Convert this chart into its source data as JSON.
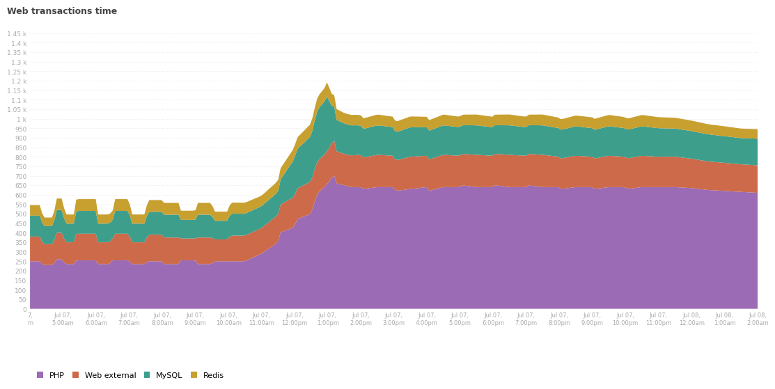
{
  "title": "Web transactions time",
  "colors": {
    "PHP": "#9b6bb5",
    "Web external": "#cd6a4a",
    "MySQL": "#3d9e8c",
    "Redis": "#c8a030"
  },
  "background_color": "#ffffff",
  "legend": [
    "PHP",
    "Web external",
    "MySQL",
    "Redis"
  ],
  "x_labels": [
    "7,\nm",
    "Jul 07,\n5:00am",
    "Jul 07,\n6:00am",
    "Jul 07,\n7:00am",
    "Jul 07,\n8:00am",
    "Jul 07,\n9:00am",
    "Jul 07,\n10:00am",
    "Jul 07,\n11:00am",
    "Jul 07,\n12:00pm",
    "Jul 07,\n1:00pm",
    "Jul 07,\n2:00pm",
    "Jul 07,\n3:00pm",
    "Jul 07,\n4:00pm",
    "Jul 07,\n5:00pm",
    "Jul 07,\n6:00pm",
    "Jul 07,\n7:00pm",
    "Jul 07,\n8:00pm",
    "Jul 07,\n9:00pm",
    "Jul 07,\n10:00pm",
    "Jul 07,\n11:00pm",
    "Jul 08,\n12:00am",
    "Jul 08,\n1:00am",
    "Jul 08,\n2:00am"
  ],
  "php_data": [
    [
      0,
      250
    ],
    [
      0.3,
      250
    ],
    [
      0.4,
      230
    ],
    [
      0.7,
      230
    ],
    [
      0.8,
      260
    ],
    [
      1.0,
      260
    ],
    [
      1.05,
      235
    ],
    [
      1.35,
      235
    ],
    [
      1.4,
      255
    ],
    [
      2.0,
      255
    ],
    [
      2.05,
      235
    ],
    [
      2.4,
      235
    ],
    [
      2.5,
      255
    ],
    [
      3.0,
      255
    ],
    [
      3.05,
      235
    ],
    [
      3.5,
      235
    ],
    [
      3.55,
      250
    ],
    [
      4.0,
      250
    ],
    [
      4.05,
      235
    ],
    [
      4.5,
      235
    ],
    [
      4.55,
      255
    ],
    [
      5.0,
      255
    ],
    [
      5.05,
      235
    ],
    [
      5.5,
      235
    ],
    [
      5.55,
      250
    ],
    [
      6.0,
      250
    ],
    [
      6.5,
      250
    ],
    [
      7.0,
      290
    ],
    [
      7.5,
      350
    ],
    [
      7.55,
      400
    ],
    [
      8.0,
      430
    ],
    [
      8.05,
      470
    ],
    [
      8.5,
      500
    ],
    [
      8.6,
      560
    ],
    [
      8.7,
      610
    ],
    [
      8.9,
      640
    ],
    [
      9.0,
      660
    ],
    [
      9.1,
      680
    ],
    [
      9.15,
      700
    ],
    [
      9.2,
      700
    ],
    [
      9.25,
      660
    ],
    [
      9.5,
      650
    ],
    [
      9.7,
      640
    ],
    [
      10.0,
      640
    ],
    [
      10.05,
      630
    ],
    [
      10.5,
      640
    ],
    [
      11.0,
      640
    ],
    [
      11.05,
      620
    ],
    [
      11.5,
      630
    ],
    [
      12.0,
      640
    ],
    [
      12.05,
      620
    ],
    [
      12.5,
      640
    ],
    [
      13.0,
      640
    ],
    [
      13.05,
      650
    ],
    [
      13.5,
      640
    ],
    [
      14.0,
      640
    ],
    [
      14.05,
      650
    ],
    [
      14.5,
      640
    ],
    [
      15.0,
      640
    ],
    [
      15.05,
      650
    ],
    [
      15.5,
      640
    ],
    [
      16.0,
      640
    ],
    [
      16.05,
      630
    ],
    [
      16.5,
      640
    ],
    [
      17.0,
      640
    ],
    [
      17.05,
      630
    ],
    [
      17.5,
      640
    ],
    [
      18.0,
      640
    ],
    [
      18.05,
      630
    ],
    [
      18.5,
      640
    ],
    [
      19.0,
      640
    ],
    [
      19.5,
      640
    ],
    [
      20.0,
      635
    ],
    [
      20.5,
      625
    ],
    [
      21.0,
      620
    ],
    [
      21.5,
      615
    ],
    [
      22.0,
      610
    ]
  ],
  "web_data": [
    [
      0,
      130
    ],
    [
      0.3,
      130
    ],
    [
      0.4,
      110
    ],
    [
      0.7,
      110
    ],
    [
      0.8,
      140
    ],
    [
      1.0,
      140
    ],
    [
      1.05,
      115
    ],
    [
      1.35,
      115
    ],
    [
      1.4,
      140
    ],
    [
      2.0,
      140
    ],
    [
      2.05,
      115
    ],
    [
      2.5,
      115
    ],
    [
      2.55,
      140
    ],
    [
      3.0,
      140
    ],
    [
      3.05,
      115
    ],
    [
      3.5,
      115
    ],
    [
      3.55,
      140
    ],
    [
      4.5,
      140
    ],
    [
      4.55,
      115
    ],
    [
      5.0,
      115
    ],
    [
      5.05,
      140
    ],
    [
      5.5,
      140
    ],
    [
      5.55,
      115
    ],
    [
      6.0,
      115
    ],
    [
      6.05,
      135
    ],
    [
      6.5,
      135
    ],
    [
      7.0,
      135
    ],
    [
      7.5,
      145
    ],
    [
      8.0,
      160
    ],
    [
      8.5,
      170
    ],
    [
      8.9,
      170
    ],
    [
      9.0,
      175
    ],
    [
      9.1,
      180
    ],
    [
      9.15,
      185
    ],
    [
      9.2,
      185
    ],
    [
      9.25,
      170
    ],
    [
      9.5,
      165
    ],
    [
      10.0,
      170
    ],
    [
      10.05,
      165
    ],
    [
      10.5,
      170
    ],
    [
      11.0,
      165
    ],
    [
      11.05,
      160
    ],
    [
      11.5,
      170
    ],
    [
      12.0,
      165
    ],
    [
      12.5,
      170
    ],
    [
      13.0,
      165
    ],
    [
      13.5,
      170
    ],
    [
      14.0,
      165
    ],
    [
      14.5,
      170
    ],
    [
      15.0,
      165
    ],
    [
      15.5,
      170
    ],
    [
      16.0,
      160
    ],
    [
      16.5,
      165
    ],
    [
      17.0,
      160
    ],
    [
      17.5,
      165
    ],
    [
      18.0,
      160
    ],
    [
      18.5,
      165
    ],
    [
      19.0,
      160
    ],
    [
      19.5,
      160
    ],
    [
      20.0,
      155
    ],
    [
      20.5,
      150
    ],
    [
      21.0,
      148
    ],
    [
      21.5,
      145
    ],
    [
      22.0,
      145
    ]
  ],
  "mysql_data": [
    [
      0,
      110
    ],
    [
      0.3,
      110
    ],
    [
      0.4,
      95
    ],
    [
      0.7,
      95
    ],
    [
      0.8,
      120
    ],
    [
      1.0,
      120
    ],
    [
      1.05,
      98
    ],
    [
      1.35,
      98
    ],
    [
      1.4,
      120
    ],
    [
      2.0,
      120
    ],
    [
      2.05,
      98
    ],
    [
      2.5,
      98
    ],
    [
      2.55,
      120
    ],
    [
      3.0,
      120
    ],
    [
      3.05,
      98
    ],
    [
      3.5,
      98
    ],
    [
      3.55,
      120
    ],
    [
      4.5,
      120
    ],
    [
      4.55,
      98
    ],
    [
      5.0,
      98
    ],
    [
      5.05,
      120
    ],
    [
      5.5,
      120
    ],
    [
      5.55,
      98
    ],
    [
      6.0,
      98
    ],
    [
      6.05,
      115
    ],
    [
      6.5,
      115
    ],
    [
      7.0,
      115
    ],
    [
      7.5,
      120
    ],
    [
      8.0,
      200
    ],
    [
      8.5,
      240
    ],
    [
      8.7,
      270
    ],
    [
      8.9,
      280
    ],
    [
      9.0,
      290
    ],
    [
      9.1,
      200
    ],
    [
      9.2,
      180
    ],
    [
      9.25,
      165
    ],
    [
      9.5,
      160
    ],
    [
      10.0,
      155
    ],
    [
      10.05,
      150
    ],
    [
      10.5,
      155
    ],
    [
      11.0,
      150
    ],
    [
      11.05,
      148
    ],
    [
      11.5,
      155
    ],
    [
      12.0,
      150
    ],
    [
      12.5,
      155
    ],
    [
      13.0,
      150
    ],
    [
      13.5,
      155
    ],
    [
      14.0,
      150
    ],
    [
      14.5,
      155
    ],
    [
      15.0,
      150
    ],
    [
      15.5,
      155
    ],
    [
      16.0,
      150
    ],
    [
      16.5,
      155
    ],
    [
      17.0,
      150
    ],
    [
      17.5,
      155
    ],
    [
      18.0,
      150
    ],
    [
      18.5,
      155
    ],
    [
      19.0,
      150
    ],
    [
      19.5,
      148
    ],
    [
      20.0,
      145
    ],
    [
      20.5,
      143
    ],
    [
      21.0,
      140
    ],
    [
      21.5,
      138
    ],
    [
      22.0,
      140
    ]
  ],
  "redis_data": [
    [
      0,
      55
    ],
    [
      0.3,
      55
    ],
    [
      0.4,
      45
    ],
    [
      0.7,
      45
    ],
    [
      0.8,
      60
    ],
    [
      1.0,
      60
    ],
    [
      1.05,
      48
    ],
    [
      1.35,
      48
    ],
    [
      1.4,
      62
    ],
    [
      2.0,
      62
    ],
    [
      2.05,
      48
    ],
    [
      2.5,
      48
    ],
    [
      2.55,
      62
    ],
    [
      3.0,
      62
    ],
    [
      3.05,
      48
    ],
    [
      3.5,
      48
    ],
    [
      3.55,
      62
    ],
    [
      4.5,
      62
    ],
    [
      4.55,
      48
    ],
    [
      5.0,
      48
    ],
    [
      5.05,
      62
    ],
    [
      5.5,
      62
    ],
    [
      5.55,
      48
    ],
    [
      6.0,
      48
    ],
    [
      6.05,
      58
    ],
    [
      6.5,
      58
    ],
    [
      7.0,
      55
    ],
    [
      7.5,
      58
    ],
    [
      8.0,
      60
    ],
    [
      8.5,
      65
    ],
    [
      8.9,
      70
    ],
    [
      9.0,
      75
    ],
    [
      9.1,
      65
    ],
    [
      9.2,
      58
    ],
    [
      9.5,
      55
    ],
    [
      10.0,
      55
    ],
    [
      10.5,
      57
    ],
    [
      11.0,
      55
    ],
    [
      11.5,
      57
    ],
    [
      12.0,
      55
    ],
    [
      12.5,
      57
    ],
    [
      13.0,
      55
    ],
    [
      13.5,
      57
    ],
    [
      14.0,
      55
    ],
    [
      14.5,
      57
    ],
    [
      15.0,
      55
    ],
    [
      15.5,
      57
    ],
    [
      16.0,
      55
    ],
    [
      16.5,
      57
    ],
    [
      17.0,
      57
    ],
    [
      17.5,
      60
    ],
    [
      18.0,
      58
    ],
    [
      18.5,
      60
    ],
    [
      19.0,
      58
    ],
    [
      19.5,
      57
    ],
    [
      20.0,
      55
    ],
    [
      20.5,
      53
    ],
    [
      21.0,
      52
    ],
    [
      21.5,
      50
    ],
    [
      22.0,
      50
    ]
  ]
}
